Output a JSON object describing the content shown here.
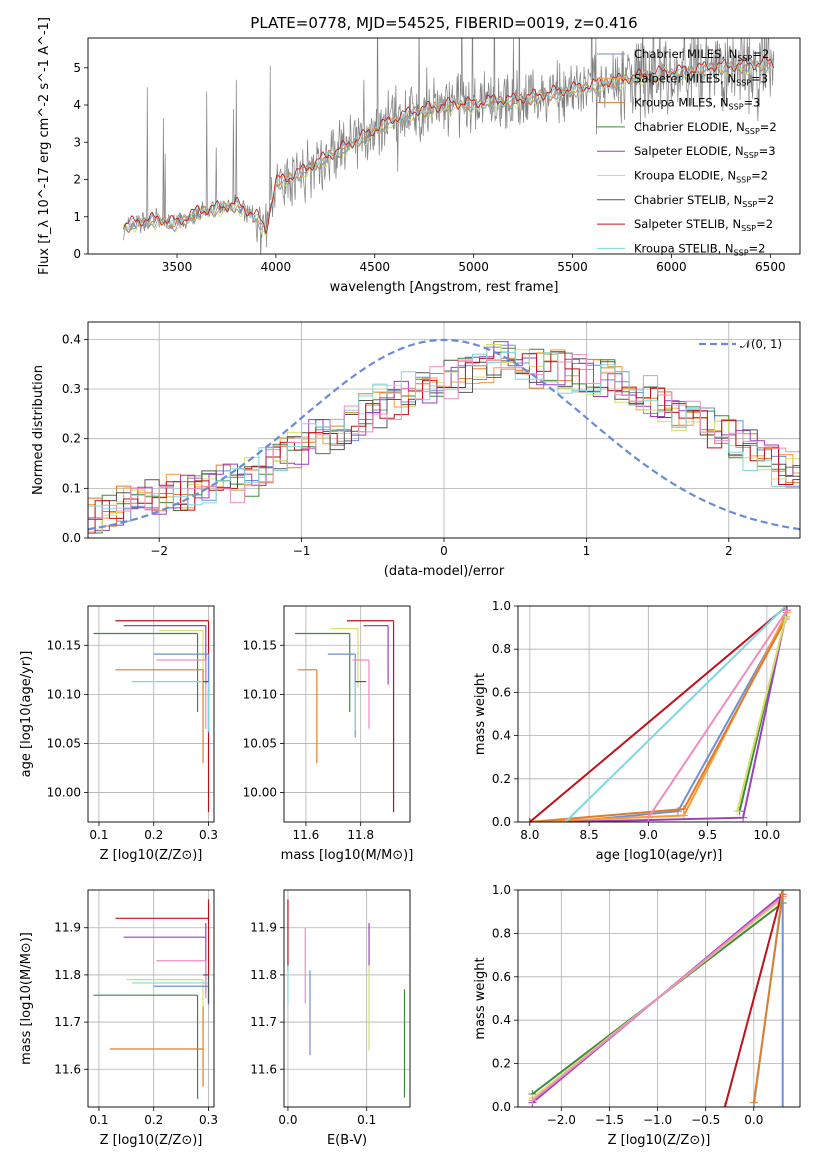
{
  "colors": {
    "Chabrier MILES": "#6f8fd6",
    "Salpeter MILES": "#ff9a2e",
    "Kroupa MILES": "#e07c2c",
    "Chabrier ELODIE": "#3c8a3c",
    "Salpeter ELODIE": "#9b3fc0",
    "Kroupa ELODIE": "#d4e06a",
    "Chabrier STELIB": "#555555",
    "Salpeter STELIB": "#c0101a",
    "Kroupa STELIB": "#7fd8e0",
    "gauss": "#6a8cd8",
    "Pink": "#f08cc0"
  },
  "chart_data": [
    {
      "id": "spectrum",
      "type": "line",
      "title": "PLATE=0778, MJD=54525, FIBERID=0019, z=0.416",
      "xlabel": "wavelength [Angstrom, rest frame]",
      "ylabel": "Flux [f_λ 10^-17 erg cm^-2 s^-1 A^-1]",
      "xlim": [
        3050,
        6650
      ],
      "ylim": [
        0,
        5.8
      ],
      "xticks": [
        3500,
        4000,
        4500,
        5000,
        5500,
        6000,
        6500
      ],
      "yticks": [
        0,
        1,
        2,
        3,
        4,
        5
      ],
      "grid": false,
      "legend_position": "top-right",
      "legend": [
        {
          "label": "Chabrier MILES, N",
          "sub": "SSP",
          "suffix": "=2",
          "color_key": "Chabrier MILES"
        },
        {
          "label": "Salpeter MILES, N",
          "sub": "SSP",
          "suffix": "=3",
          "color_key": "Salpeter MILES"
        },
        {
          "label": "Kroupa MILES, N",
          "sub": "SSP",
          "suffix": "=3",
          "color_key": "Kroupa MILES"
        },
        {
          "label": "Chabrier ELODIE, N",
          "sub": "SSP",
          "suffix": "=2",
          "color_key": "Chabrier ELODIE"
        },
        {
          "label": "Salpeter ELODIE, N",
          "sub": "SSP",
          "suffix": "=3",
          "color_key": "Salpeter ELODIE"
        },
        {
          "label": "Kroupa ELODIE, N",
          "sub": "SSP",
          "suffix": "=2",
          "color_key": "Kroupa ELODIE"
        },
        {
          "label": "Chabrier STELIB, N",
          "sub": "SSP",
          "suffix": "=2",
          "color_key": "Chabrier STELIB"
        },
        {
          "label": "Salpeter STELIB, N",
          "sub": "SSP",
          "suffix": "=2",
          "color_key": "Salpeter STELIB"
        },
        {
          "label": "Kroupa STELIB, N",
          "sub": "SSP",
          "suffix": "=2",
          "color_key": "Kroupa STELIB"
        }
      ],
      "model_continuum": {
        "x": [
          3230,
          3300,
          3400,
          3500,
          3600,
          3700,
          3800,
          3900,
          3950,
          4000,
          4100,
          4200,
          4300,
          4400,
          4500,
          4600,
          4700,
          4800,
          4900,
          5000,
          5100,
          5200,
          5300,
          5400,
          5500,
          5600,
          5700,
          5800,
          5900,
          6000,
          6100,
          6200,
          6300,
          6400,
          6500
        ],
        "y": [
          0.7,
          0.85,
          0.9,
          0.8,
          1.1,
          1.2,
          1.3,
          1.0,
          0.6,
          1.9,
          2.1,
          2.4,
          2.7,
          3.0,
          3.3,
          3.6,
          3.8,
          3.9,
          4.0,
          4.0,
          4.1,
          4.1,
          4.2,
          4.3,
          4.4,
          4.5,
          4.6,
          4.7,
          4.8,
          4.85,
          4.9,
          5.0,
          5.0,
          5.05,
          5.1
        ]
      }
    },
    {
      "id": "residuals",
      "type": "bar",
      "xlabel": "(data-model)/error",
      "ylabel": "Normed distribution",
      "xlim": [
        -2.5,
        2.5
      ],
      "ylim": [
        0,
        0.435
      ],
      "xticks": [
        -2,
        -1,
        0,
        1,
        2
      ],
      "yticks": [
        0.0,
        0.1,
        0.2,
        0.3,
        0.4
      ],
      "grid": true,
      "legend_position": "top-right",
      "legend": [
        {
          "label": "𝒩(0, 1)",
          "color_key": "gauss"
        }
      ],
      "bin_edges_start": -2.5,
      "bin_width": 0.1,
      "envelope": [
        0.04,
        0.05,
        0.06,
        0.07,
        0.08,
        0.08,
        0.09,
        0.09,
        0.1,
        0.1,
        0.11,
        0.12,
        0.14,
        0.15,
        0.17,
        0.18,
        0.2,
        0.21,
        0.23,
        0.24,
        0.26,
        0.27,
        0.28,
        0.3,
        0.31,
        0.32,
        0.33,
        0.34,
        0.35,
        0.36,
        0.35,
        0.35,
        0.34,
        0.34,
        0.33,
        0.32,
        0.32,
        0.31,
        0.3,
        0.29,
        0.28,
        0.26,
        0.25,
        0.23,
        0.22,
        0.2,
        0.19,
        0.17,
        0.15,
        0.14
      ]
    },
    {
      "id": "age-vs-Z",
      "type": "scatter",
      "xlabel": "Z [log10(Z/Z⊙)]",
      "ylabel": "age  [log10(age/yr)]",
      "xlim": [
        0.08,
        0.31
      ],
      "ylim": [
        9.97,
        10.19
      ],
      "xticks": [
        0.1,
        0.2,
        0.3
      ],
      "yticks": [
        10.0,
        10.05,
        10.1,
        10.15
      ],
      "grid": true,
      "points": [
        {
          "series": "Salpeter STELIB",
          "x": 0.3,
          "y": 10.175,
          "xerr_lo": 0.17,
          "yerr_lo": 0.195,
          "yerr_hi": 0.0
        },
        {
          "series": "Salpeter ELODIE",
          "x": 0.295,
          "y": 10.17,
          "xerr_lo": 0.15,
          "yerr_lo": 0.06,
          "yerr_hi": 0.0
        },
        {
          "series": "Chabrier ELODIE",
          "x": 0.28,
          "y": 10.162,
          "xerr_lo": 0.19,
          "yerr_lo": 0.08,
          "yerr_hi": 0.0
        },
        {
          "series": "Kroupa ELODIE",
          "x": 0.29,
          "y": 10.165,
          "xerr_lo": 0.08,
          "yerr_lo": 0.06,
          "yerr_hi": 0.0
        },
        {
          "series": "Chabrier MILES",
          "x": 0.3,
          "y": 10.141,
          "xerr_lo": 0.1,
          "yerr_lo": 0.08,
          "yerr_hi": 0.0
        },
        {
          "series": "Pink",
          "x": 0.295,
          "y": 10.135,
          "xerr_lo": 0.09,
          "yerr_lo": 0.07,
          "yerr_hi": 0.0
        },
        {
          "series": "Kroupa MILES",
          "x": 0.29,
          "y": 10.125,
          "xerr_lo": 0.16,
          "yerr_lo": 0.095,
          "yerr_hi": 0.0
        },
        {
          "series": "Kroupa STELIB",
          "x": 0.3,
          "y": 10.113,
          "xerr_lo": 0.14,
          "yerr_lo": 0.05,
          "yerr_hi": 0.0
        },
        {
          "series": "Chabrier STELIB",
          "x": 0.3,
          "y": 10.113,
          "xerr_lo": 0.01,
          "yerr_lo": 0.0,
          "yerr_hi": 0.0
        }
      ]
    },
    {
      "id": "age-vs-mass",
      "type": "scatter",
      "xlabel": "mass [log10(M/M⊙)]",
      "ylabel": "",
      "xlim": [
        11.52,
        11.98
      ],
      "ylim": [
        9.97,
        10.19
      ],
      "xticks": [
        11.6,
        11.8
      ],
      "yticks": [
        10.0,
        10.05,
        10.1,
        10.15
      ],
      "grid": true,
      "points": [
        {
          "series": "Salpeter STELIB",
          "x": 11.92,
          "y": 10.175,
          "xerr_lo": 0.17,
          "yerr_lo": 0.195
        },
        {
          "series": "Salpeter ELODIE",
          "x": 11.9,
          "y": 10.17,
          "xerr_lo": 0.09,
          "yerr_lo": 0.06
        },
        {
          "series": "Kroupa ELODIE",
          "x": 11.79,
          "y": 10.167,
          "xerr_lo": 0.1,
          "yerr_lo": 0.06
        },
        {
          "series": "Chabrier ELODIE",
          "x": 11.76,
          "y": 10.162,
          "xerr_lo": 0.2,
          "yerr_lo": 0.08
        },
        {
          "series": "Chabrier MILES",
          "x": 11.78,
          "y": 10.141,
          "xerr_lo": 0.1,
          "yerr_lo": 0.085
        },
        {
          "series": "Pink",
          "x": 11.83,
          "y": 10.135,
          "xerr_lo": 0.06,
          "yerr_lo": 0.07
        },
        {
          "series": "Kroupa MILES",
          "x": 11.64,
          "y": 10.125,
          "xerr_lo": 0.07,
          "yerr_lo": 0.095
        },
        {
          "series": "Kroupa STELIB",
          "x": 11.78,
          "y": 10.113,
          "xerr_lo": 0.0,
          "yerr_lo": 0.05
        },
        {
          "series": "Chabrier STELIB",
          "x": 11.78,
          "y": 10.113,
          "xerr_lo": 0.0,
          "yerr_lo": 0.0,
          "xerr_hi": 0.04
        }
      ]
    },
    {
      "id": "weight-vs-age",
      "type": "line",
      "xlabel": "age  [log10(age/yr)]",
      "ylabel": "mass weight",
      "xlim": [
        7.9,
        10.28
      ],
      "ylim": [
        0.0,
        1.0
      ],
      "xticks": [
        8.0,
        8.5,
        9.0,
        9.5,
        10.0
      ],
      "yticks": [
        0.0,
        0.2,
        0.4,
        0.6,
        0.8,
        1.0
      ],
      "grid": true,
      "series": [
        {
          "name": "Chabrier MILES",
          "x": [
            8.3,
            9.25,
            10.16
          ],
          "y": [
            0.0,
            0.05,
            0.95
          ]
        },
        {
          "name": "Salpeter MILES",
          "x": [
            8.0,
            9.3,
            10.17
          ],
          "y": [
            0.0,
            0.03,
            0.97
          ]
        },
        {
          "name": "Kroupa MILES",
          "x": [
            8.0,
            9.3,
            10.16
          ],
          "y": [
            0.0,
            0.06,
            0.94
          ]
        },
        {
          "name": "Chabrier ELODIE",
          "x": [
            9.77,
            10.16
          ],
          "y": [
            0.05,
            0.95
          ]
        },
        {
          "name": "Salpeter ELODIE",
          "x": [
            8.3,
            9.8,
            10.17
          ],
          "y": [
            0.0,
            0.02,
            0.98
          ]
        },
        {
          "name": "Kroupa ELODIE",
          "x": [
            9.75,
            10.16
          ],
          "y": [
            0.05,
            0.95
          ]
        },
        {
          "name": "Pink",
          "x": [
            9.0,
            10.17
          ],
          "y": [
            0.02,
            0.98
          ]
        },
        {
          "name": "Salpeter STELIB",
          "x": [
            8.0,
            10.17
          ],
          "y": [
            0.0,
            1.0
          ]
        },
        {
          "name": "Kroupa STELIB",
          "x": [
            8.3,
            10.16
          ],
          "y": [
            0.0,
            1.0
          ]
        }
      ]
    },
    {
      "id": "mass-vs-Z",
      "type": "scatter",
      "xlabel": "Z [log10(Z/Z⊙)]",
      "ylabel": "mass [log10(M/M⊙)]",
      "xlim": [
        0.08,
        0.31
      ],
      "ylim": [
        11.52,
        11.98
      ],
      "xticks": [
        0.1,
        0.2,
        0.3
      ],
      "yticks": [
        11.6,
        11.7,
        11.8,
        11.9
      ],
      "grid": true,
      "points": [
        {
          "series": "Salpeter STELIB",
          "x": 0.3,
          "y": 11.92,
          "xerr_lo": 0.17,
          "yerr_lo": 0.13,
          "yerr_hi": 0.04
        },
        {
          "series": "Salpeter ELODIE",
          "x": 0.295,
          "y": 11.88,
          "xerr_lo": 0.15,
          "yerr_lo": 0.12,
          "yerr_hi": 0.03
        },
        {
          "series": "Pink",
          "x": 0.295,
          "y": 11.83,
          "xerr_lo": 0.09,
          "yerr_lo": 0.08,
          "yerr_hi": 0.0
        },
        {
          "series": "Kroupa ELODIE",
          "x": 0.29,
          "y": 11.79,
          "xerr_lo": 0.14,
          "yerr_lo": 0.1,
          "yerr_hi": 0.0
        },
        {
          "series": "Kroupa STELIB",
          "x": 0.3,
          "y": 11.783,
          "xerr_lo": 0.14,
          "yerr_lo": 0.04,
          "yerr_hi": 0.0
        },
        {
          "series": "Chabrier MILES",
          "x": 0.3,
          "y": 11.776,
          "xerr_lo": 0.1,
          "yerr_lo": 0.04,
          "yerr_hi": 0.0
        },
        {
          "series": "Chabrier STELIB",
          "x": 0.3,
          "y": 11.8,
          "xerr_lo": 0.01,
          "yerr_lo": 0.06,
          "yerr_hi": 0.0
        },
        {
          "series": "Chabrier ELODIE",
          "x": 0.28,
          "y": 11.757,
          "xerr_lo": 0.19,
          "yerr_lo": 0.22,
          "yerr_hi": 0.0
        },
        {
          "series": "Kroupa MILES",
          "x": 0.29,
          "y": 11.643,
          "xerr_lo": 0.17,
          "yerr_lo": 0.08,
          "yerr_hi": 0.09
        }
      ]
    },
    {
      "id": "mass-vs-ebv",
      "type": "scatter",
      "xlabel": "E(B-V)",
      "ylabel": "",
      "xlim": [
        -0.005,
        0.155
      ],
      "ylim": [
        11.52,
        11.98
      ],
      "xticks": [
        0.0,
        0.1
      ],
      "yticks": [
        11.6,
        11.7,
        11.8,
        11.9
      ],
      "grid": true,
      "points": [
        {
          "series": "Salpeter STELIB",
          "x": 0.0,
          "ylo": 11.81,
          "yhi": 11.96
        },
        {
          "series": "Kroupa STELIB",
          "x": 0.0,
          "ylo": 11.74,
          "yhi": 11.82
        },
        {
          "series": "Pink",
          "x": 0.022,
          "ylo": 11.74,
          "yhi": 11.9
        },
        {
          "series": "Chabrier MILES",
          "x": 0.028,
          "ylo": 11.63,
          "yhi": 11.81
        },
        {
          "series": "Salpeter ELODIE",
          "x": 0.103,
          "ylo": 11.82,
          "yhi": 11.91
        },
        {
          "series": "Kroupa ELODIE",
          "x": 0.103,
          "ylo": 11.64,
          "yhi": 11.82
        },
        {
          "series": "Chabrier ELODIE",
          "x": 0.148,
          "ylo": 11.54,
          "yhi": 11.77
        }
      ]
    },
    {
      "id": "weight-vs-Z",
      "type": "line",
      "xlabel": "Z [log10(Z/Z⊙)]",
      "ylabel": "mass weight",
      "xlim": [
        -2.45,
        0.48
      ],
      "ylim": [
        0.0,
        1.0
      ],
      "xticks": [
        -2.0,
        -1.5,
        -1.0,
        -0.5,
        0.0
      ],
      "yticks": [
        0.0,
        0.2,
        0.4,
        0.6,
        0.8,
        1.0
      ],
      "grid": true,
      "series": [
        {
          "name": "Chabrier ELODIE",
          "x": [
            -2.3,
            0.3
          ],
          "y": [
            0.06,
            0.94
          ]
        },
        {
          "name": "Salpeter ELODIE",
          "x": [
            -2.3,
            0.3
          ],
          "y": [
            0.02,
            0.98
          ]
        },
        {
          "name": "Kroupa ELODIE",
          "x": [
            -2.3,
            0.3
          ],
          "y": [
            0.04,
            0.96
          ]
        },
        {
          "name": "Pink",
          "x": [
            -2.3,
            0.3
          ],
          "y": [
            0.03,
            0.97
          ]
        },
        {
          "name": "Salpeter STELIB",
          "x": [
            -0.3,
            0.3
          ],
          "y": [
            0.0,
            1.0
          ]
        },
        {
          "name": "Kroupa STELIB",
          "x": [
            0.0,
            0.3
          ],
          "y": [
            0.0,
            1.0
          ]
        },
        {
          "name": "Chabrier MILES",
          "x": [
            0.3,
            0.3
          ],
          "y": [
            0.0,
            1.0
          ]
        },
        {
          "name": "Kroupa MILES",
          "x": [
            0.0,
            0.3
          ],
          "y": [
            0.02,
            0.98
          ]
        }
      ]
    }
  ]
}
